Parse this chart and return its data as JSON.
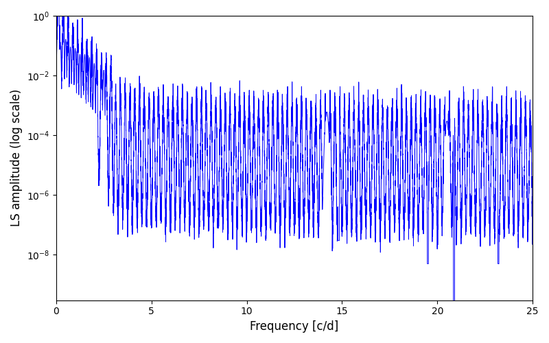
{
  "title": "",
  "xlabel": "Frequency [c/d]",
  "ylabel": "LS amplitude (log scale)",
  "xlim": [
    0,
    25
  ],
  "ylim": [
    3e-10,
    1.0
  ],
  "line_color": "#0000ff",
  "line_width": 0.7,
  "figsize": [
    8.0,
    5.0
  ],
  "dpi": 100,
  "seed": 77,
  "n_points": 8000,
  "freq_max": 25.0,
  "background_color": "#ffffff"
}
